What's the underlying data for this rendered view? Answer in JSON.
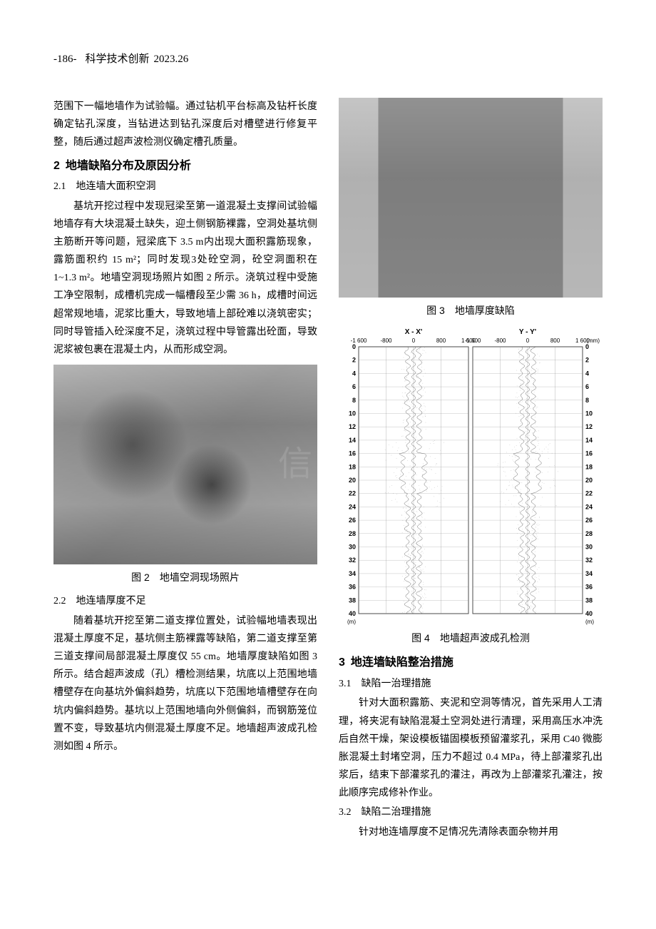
{
  "header": {
    "page_number": "-186-",
    "journal": "科学技术创新",
    "issue": "2023.26"
  },
  "left_column": {
    "para1": "范围下一幅地墙作为试验幅。通过钻机平台标高及钻杆长度确定钻孔深度，当钻进达到钻孔深度后对槽壁进行修复平整，随后通过超声波检测仪确定槽孔质量。",
    "section2_number": "2",
    "section2_title": "地墙缺陷分布及原因分析",
    "sub2_1": "2.1　地连墙大面积空洞",
    "para2": "基坑开挖过程中发现冠梁至第一道混凝土支撑间试验幅地墙存有大块混凝土缺失，迎土侧钢筋裸露，空洞处基坑侧主筋断开等问题，冠梁底下 3.5 m内出现大面积露筋现象，露筋面积约 15 m²；同时发现3处砼空洞，砼空洞面积在 1~1.3 m²。地墙空洞现场照片如图 2 所示。浇筑过程中受施工净空限制，成槽机完成一幅槽段至少需 36 h，成槽时间远超常规地墙，泥浆比重大，导致地墙上部砼难以浇筑密实；同时导管插入砼深度不足，浇筑过程中导管露出砼面，导致泥浆被包裹在混凝土内，从而形成空洞。",
    "fig2_caption": "图 2　地墙空洞现场照片",
    "sub2_2": "2.2　地连墙厚度不足",
    "para3": "随着基坑开挖至第二道支撑位置处，试验幅地墙表现出混凝土厚度不足，基坑侧主筋裸露等缺陷，第二道支撑至第三道支撑间局部混凝土厚度仅 55 cm。地墙厚度缺陷如图 3 所示。结合超声波成（孔）槽检测结果，坑底以上范围地墙槽壁存在向基坑外偏斜趋势，坑底以下范围地墙槽壁存在向坑内偏斜趋势。基坑以上范围地墙向外侧偏斜，而钢筋笼位置不变，导致基坑内侧混凝土厚度不足。地墙超声波成孔检测如图 4 所示。"
  },
  "right_column": {
    "fig3_caption": "图 3　地墙厚度缺陷",
    "fig4_caption": "图 4　地墙超声波成孔检测",
    "section3_number": "3",
    "section3_title": "地连墙缺陷整治措施",
    "sub3_1": "3.1　缺陷一治理措施",
    "para4": "针对大面积露筋、夹泥和空洞等情况，首先采用人工清理，将夹泥有缺陷混凝土空洞处进行清理，采用高压水冲洗后自然干燥，架设模板锚固模板预留灌浆孔，采用 C40 微膨胀混凝土封堵空洞，压力不超过 0.4 MPa，待上部灌浆孔出浆后，结束下部灌浆孔的灌注，再改为上部灌浆孔灌注，按此顺序完成修补作业。",
    "sub3_2": "3.2　缺陷二治理措施",
    "para5": "针对地连墙厚度不足情况先清除表面杂物并用"
  },
  "chart": {
    "top_labels": {
      "xx": "X - X'",
      "yy": "Y - Y'"
    },
    "x_ticks_left": [
      "-1 600",
      "-800",
      "0",
      "800",
      "1 600"
    ],
    "x_ticks_right": [
      "-1 600",
      "-800",
      "0",
      "800",
      "1 600"
    ],
    "x_unit": "(mm)",
    "y_ticks_left": [
      0,
      2,
      4,
      6,
      8,
      10,
      12,
      14,
      16,
      18,
      20,
      22,
      24,
      26,
      28,
      30,
      32,
      34,
      36,
      38,
      40
    ],
    "y_ticks_right": [
      0,
      2,
      4,
      6,
      8,
      10,
      12,
      14,
      16,
      18,
      20,
      22,
      24,
      26,
      28,
      30,
      32,
      34,
      36,
      38,
      40
    ],
    "y_unit": "(m)",
    "ylim": [
      0,
      40
    ],
    "grid_color": "#888888",
    "background_color": "#ffffff",
    "trace_color": "#333333",
    "axis_fontsize": 9,
    "top_label_fontsize": 10
  }
}
